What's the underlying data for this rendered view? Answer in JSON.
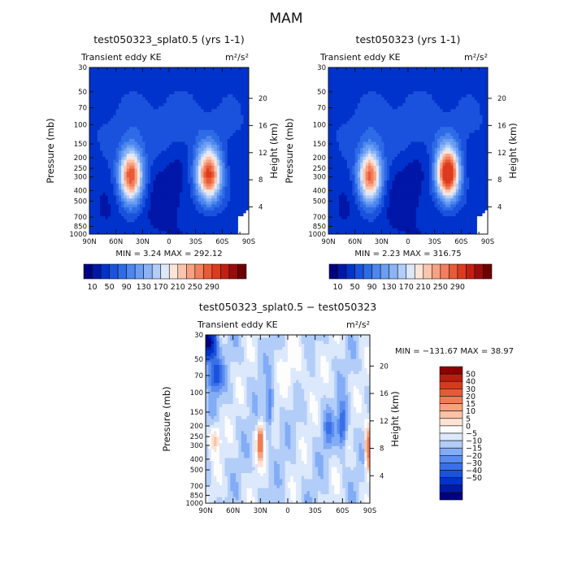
{
  "page": {
    "title": "MAM"
  },
  "colors": {
    "frame": "#111111",
    "scale_a": [
      "#000080",
      "#0017a8",
      "#0033cc",
      "#1a52dd",
      "#2e6be6",
      "#4d86ee",
      "#6a9ef3",
      "#8bb3f5",
      "#b2cdf8",
      "#dde8fb",
      "#fbe4d8",
      "#fbc5ad",
      "#f6a284",
      "#f27f5d",
      "#ea5a36",
      "#dd3b1e",
      "#c21f12",
      "#9c0b0b",
      "#6e0000"
    ],
    "scale_b": [
      "#000080",
      "#001aa8",
      "#0033cc",
      "#1a52dd",
      "#3a6fe8",
      "#5a8cf0",
      "#82acf5",
      "#b2cdf8",
      "#dce8fb",
      "#fdfdfd",
      "#fde3d4",
      "#fbc2a6",
      "#f6a17f",
      "#f07c56",
      "#e65a36",
      "#d43b1e",
      "#b81d0f",
      "#8e0000"
    ]
  },
  "chart_data": [
    {
      "type": "heatmap",
      "title": "test050323_splat0.5 (yrs 1-1)",
      "left_label": "Transient eddy KE",
      "units_label": "m²/s²",
      "ylabel": "Pressure (mb)",
      "ylabel_right": "Height (km)",
      "x_range": [
        -90,
        90
      ],
      "x_ticks": [
        -90,
        -60,
        -30,
        0,
        30,
        60,
        90
      ],
      "x_tick_labels": [
        "90N",
        "60N",
        "30N",
        "0",
        "30S",
        "60S",
        "90S"
      ],
      "y_range": [
        1000,
        30
      ],
      "y_scale": "log",
      "y_ticks": [
        30,
        50,
        70,
        100,
        150,
        200,
        250,
        300,
        400,
        500,
        700,
        850,
        1000
      ],
      "y_tick_labels": [
        "30",
        "50",
        "70",
        "100",
        "150",
        "200",
        "250",
        "300",
        "400",
        "500",
        "700",
        "850",
        "1000"
      ],
      "height_ticks": [
        4,
        8,
        12,
        16,
        20
      ],
      "height_tick_labels": [
        "4",
        "8",
        "12",
        "16",
        "20"
      ],
      "stats_text": "MIN =    3.24   MAX = 292.12",
      "min": 3.24,
      "max": 292.12,
      "jets": [
        {
          "center_lat": -43,
          "center_p": 290,
          "peak": 255,
          "lat_width": 13,
          "p_width": 0.55
        },
        {
          "center_lat": 45,
          "center_p": 290,
          "peak": 260,
          "lat_width": 14,
          "p_width": 0.55
        }
      ],
      "background_level": 35,
      "levels": [
        10,
        30,
        50,
        70,
        90,
        110,
        130,
        150,
        170,
        190,
        210,
        230,
        250,
        270,
        290
      ],
      "colorbar_labels": [
        "10",
        "50",
        "90",
        "130",
        "170",
        "210",
        "250",
        "290"
      ]
    },
    {
      "type": "heatmap",
      "title": "test050323 (yrs 1-1)",
      "left_label": "Transient eddy KE",
      "units_label": "m²/s²",
      "ylabel": "Pressure (mb)",
      "ylabel_right": "Height (km)",
      "x_range": [
        -90,
        90
      ],
      "x_ticks": [
        -90,
        -60,
        -30,
        0,
        30,
        60,
        90
      ],
      "x_tick_labels": [
        "90N",
        "60N",
        "30N",
        "0",
        "30S",
        "60S",
        "90S"
      ],
      "y_range": [
        1000,
        30
      ],
      "y_scale": "log",
      "y_ticks": [
        30,
        50,
        70,
        100,
        150,
        200,
        250,
        300,
        400,
        500,
        700,
        850,
        1000
      ],
      "y_tick_labels": [
        "30",
        "50",
        "70",
        "100",
        "150",
        "200",
        "250",
        "300",
        "400",
        "500",
        "700",
        "850",
        "1000"
      ],
      "height_ticks": [
        4,
        8,
        12,
        16,
        20
      ],
      "height_tick_labels": [
        "4",
        "8",
        "12",
        "16",
        "20"
      ],
      "stats_text": "MIN =    2.23   MAX = 316.75",
      "min": 2.23,
      "max": 316.75,
      "jets": [
        {
          "center_lat": -43,
          "center_p": 290,
          "peak": 240,
          "lat_width": 13,
          "p_width": 0.55
        },
        {
          "center_lat": 45,
          "center_p": 280,
          "peak": 300,
          "lat_width": 13,
          "p_width": 0.55
        }
      ],
      "background_level": 35,
      "levels": [
        10,
        30,
        50,
        70,
        90,
        110,
        130,
        150,
        170,
        190,
        210,
        230,
        250,
        270,
        290
      ],
      "colorbar_labels": [
        "10",
        "50",
        "90",
        "130",
        "170",
        "210",
        "250",
        "290"
      ]
    },
    {
      "type": "heatmap",
      "title": "test050323_splat0.5 − test050323",
      "left_label": "Transient eddy KE",
      "units_label": "m²/s²",
      "ylabel": "Pressure (mb)",
      "ylabel_right": "Height (km)",
      "x_range": [
        -90,
        90
      ],
      "x_ticks": [
        -90,
        -60,
        -30,
        0,
        30,
        60,
        90
      ],
      "x_tick_labels": [
        "90N",
        "60N",
        "30N",
        "0",
        "30S",
        "60S",
        "90S"
      ],
      "y_range": [
        1000,
        30
      ],
      "y_scale": "log",
      "y_ticks": [
        30,
        50,
        70,
        100,
        150,
        200,
        250,
        300,
        400,
        500,
        700,
        850,
        1000
      ],
      "y_tick_labels": [
        "30",
        "50",
        "70",
        "100",
        "150",
        "200",
        "250",
        "300",
        "400",
        "500",
        "700",
        "850",
        "1000"
      ],
      "height_ticks": [
        4,
        8,
        12,
        16,
        20
      ],
      "height_tick_labels": [
        "4",
        "8",
        "12",
        "16",
        "20"
      ],
      "stats_text": "MIN = −131.67   MAX =  38.97",
      "min": -131.67,
      "max": 38.97,
      "features": [
        {
          "center_lat": -88,
          "center_p": 35,
          "amp": -60,
          "lat_width": 9,
          "p_width": 0.35
        },
        {
          "center_lat": -80,
          "center_p": 70,
          "amp": -25,
          "lat_width": 8,
          "p_width": 0.35
        },
        {
          "center_lat": -30,
          "center_p": 280,
          "amp": 42,
          "lat_width": 3.5,
          "p_width": 0.35
        },
        {
          "center_lat": -20,
          "center_p": 140,
          "amp": -20,
          "lat_width": 4,
          "p_width": 0.45
        },
        {
          "center_lat": 60,
          "center_p": 200,
          "amp": -25,
          "lat_width": 5,
          "p_width": 0.45
        },
        {
          "center_lat": 44,
          "center_p": 220,
          "amp": -12,
          "lat_width": 6,
          "p_width": 0.4
        },
        {
          "center_lat": 88,
          "center_p": 320,
          "amp": 40,
          "lat_width": 3,
          "p_width": 0.5
        },
        {
          "center_lat": -80,
          "center_p": 260,
          "amp": 18,
          "lat_width": 6,
          "p_width": 0.3
        },
        {
          "center_lat": 10,
          "center_p": 60,
          "amp": 6,
          "lat_width": 18,
          "p_width": 0.6
        }
      ],
      "levels": [
        -50,
        -40,
        -30,
        -20,
        -15,
        -10,
        -5,
        0,
        5,
        10,
        15,
        20,
        30,
        40,
        50
      ],
      "colorbar_labels": [
        "50",
        "40",
        "30",
        "20",
        "15",
        "10",
        "5",
        "0",
        "−5",
        "−10",
        "−15",
        "−20",
        "−30",
        "−40",
        "−50"
      ]
    }
  ]
}
